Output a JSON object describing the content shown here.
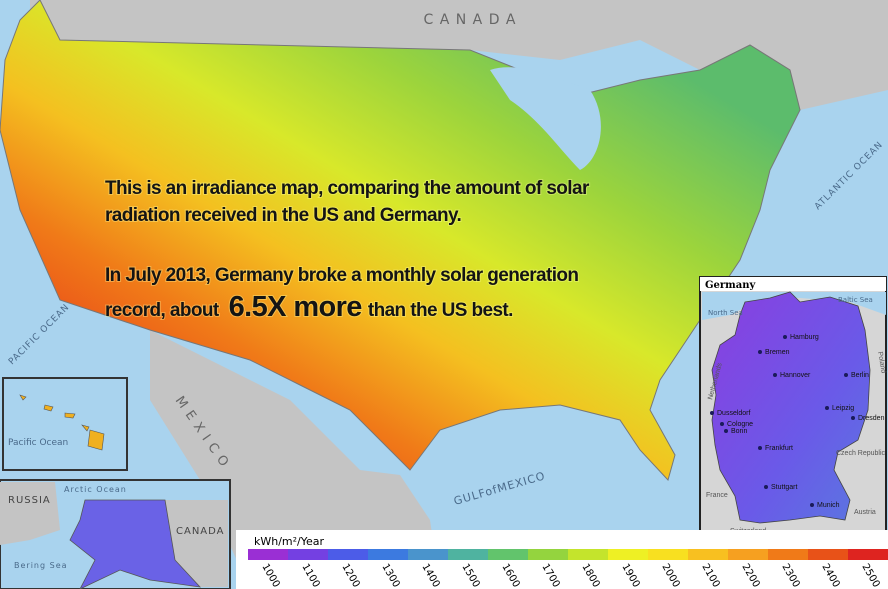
{
  "map_labels": {
    "canada": "C A N A D A",
    "atlantic": "ATLANTIC OCEAN",
    "pacific": "PACIFIC OCEAN",
    "mexico": "M E X I C O",
    "gulf": "GULFofMEXICO"
  },
  "overlay": {
    "line1": "This is an irradiance map, comparing the amount of solar",
    "line2": "radiation received in the US and Germany.",
    "line3": "In July 2013, Germany broke a monthly solar generation",
    "line4_start": "record, about",
    "highlight": "6.5X more",
    "line4_end": "than the US best."
  },
  "germany_inset": {
    "title": "Germany",
    "seas": [
      "North Sea",
      "Baltic Sea"
    ],
    "neighbors": [
      "Netherlands",
      "Poland",
      "Czech Republic",
      "France",
      "Austria",
      "Switzerland"
    ],
    "cities": [
      "Hamburg",
      "Bremen",
      "Hannover",
      "Berlin",
      "Leipzig",
      "Dresden",
      "Dusseldorf",
      "Cologne",
      "Bonn",
      "Frankfurt",
      "Stuttgart",
      "Munich"
    ]
  },
  "hawaii_inset": {
    "ocean": "Pacific Ocean"
  },
  "alaska_inset": {
    "labels": [
      "RUSSIA",
      "Arctic Ocean",
      "CANADA",
      "Bering Sea"
    ]
  },
  "legend": {
    "unit": "kWh/m²/Year",
    "ticks": [
      1000,
      1100,
      1200,
      1300,
      1400,
      1500,
      1600,
      1700,
      1800,
      1900,
      2000,
      2100,
      2200,
      2300,
      2400,
      2500
    ],
    "colors": [
      "#9a2fd4",
      "#7440e2",
      "#4c5ce8",
      "#3c7ae0",
      "#4a94cc",
      "#4fb3a0",
      "#62c46c",
      "#94d43e",
      "#c4e42c",
      "#eef024",
      "#f8e020",
      "#f8c020",
      "#f6a020",
      "#f07a18",
      "#e85218",
      "#de2420"
    ]
  }
}
